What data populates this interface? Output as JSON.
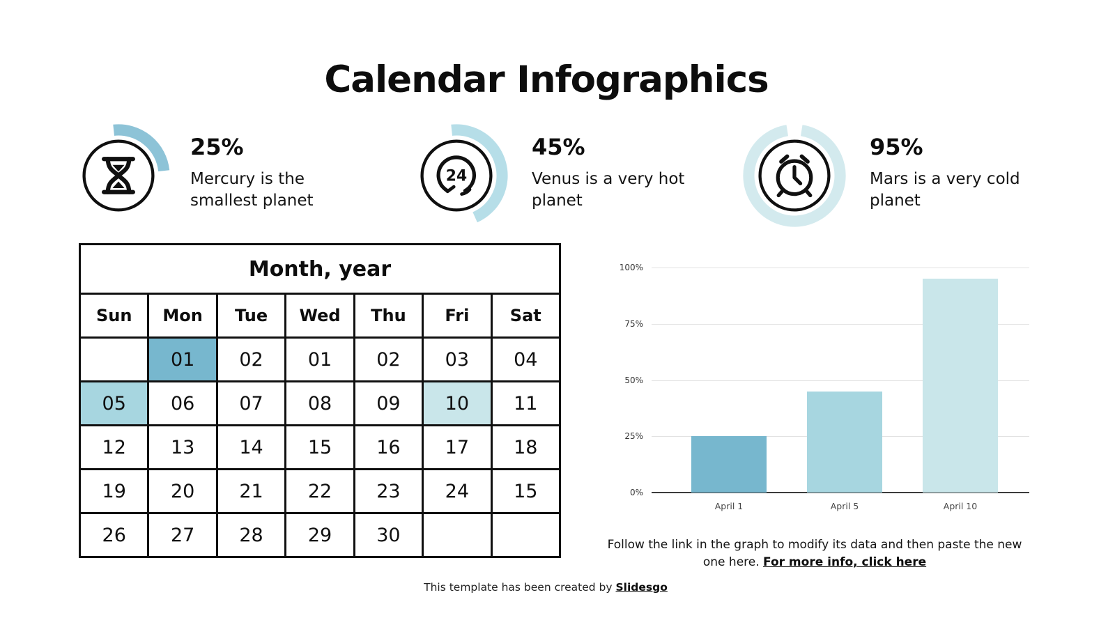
{
  "title": "Calendar Infographics",
  "stats": [
    {
      "pct": "25%",
      "value": 25,
      "desc": "Mercury is the smallest planet",
      "icon": "hourglass-icon",
      "arc_color": "#8dc3d7"
    },
    {
      "pct": "45%",
      "value": 45,
      "desc": "Venus is a very hot planet",
      "icon": "24-hours-icon",
      "icon_text": "24",
      "arc_color": "#b6dee8"
    },
    {
      "pct": "95%",
      "value": 95,
      "desc": "Mars is a very cold planet",
      "icon": "alarm-clock-icon",
      "arc_color": "#d3eaee"
    }
  ],
  "calendar": {
    "title": "Month, year",
    "weekdays": [
      "Sun",
      "Mon",
      "Tue",
      "Wed",
      "Thu",
      "Fri",
      "Sat"
    ],
    "weeks": [
      [
        "",
        {
          "t": "01",
          "hl": "dark"
        },
        "02",
        "01",
        "02",
        "03",
        "04"
      ],
      [
        {
          "t": "05",
          "hl": "mid"
        },
        "06",
        "07",
        "08",
        "09",
        {
          "t": "10",
          "hl": "light"
        },
        "11"
      ],
      [
        "12",
        "13",
        "14",
        "15",
        "16",
        "17",
        "18"
      ],
      [
        "19",
        "20",
        "21",
        "22",
        "23",
        "24",
        "15"
      ],
      [
        "26",
        "27",
        "28",
        "29",
        "30",
        "",
        ""
      ]
    ]
  },
  "chart_data": {
    "type": "bar",
    "categories": [
      "April 1",
      "April 5",
      "April 10"
    ],
    "values": [
      25,
      45,
      95
    ],
    "title": "",
    "xlabel": "",
    "ylabel": "",
    "ylim": [
      0,
      100
    ],
    "ytick_labels": [
      "0%",
      "25%",
      "50%",
      "75%",
      "100%"
    ],
    "grid": true,
    "legend": false,
    "bar_colors": [
      "#77b7ce",
      "#a7d6e0",
      "#c9e6ea"
    ]
  },
  "note": {
    "text": "Follow the link in the graph to modify its data and then paste the new one here. ",
    "link": "For more info, click here"
  },
  "footer": {
    "text": "This template has been created by ",
    "link": "Slidesgo"
  },
  "colors": {
    "accent_dark": "#77b7ce",
    "accent_mid": "#a7d6e0",
    "accent_light": "#c9e6ea"
  }
}
